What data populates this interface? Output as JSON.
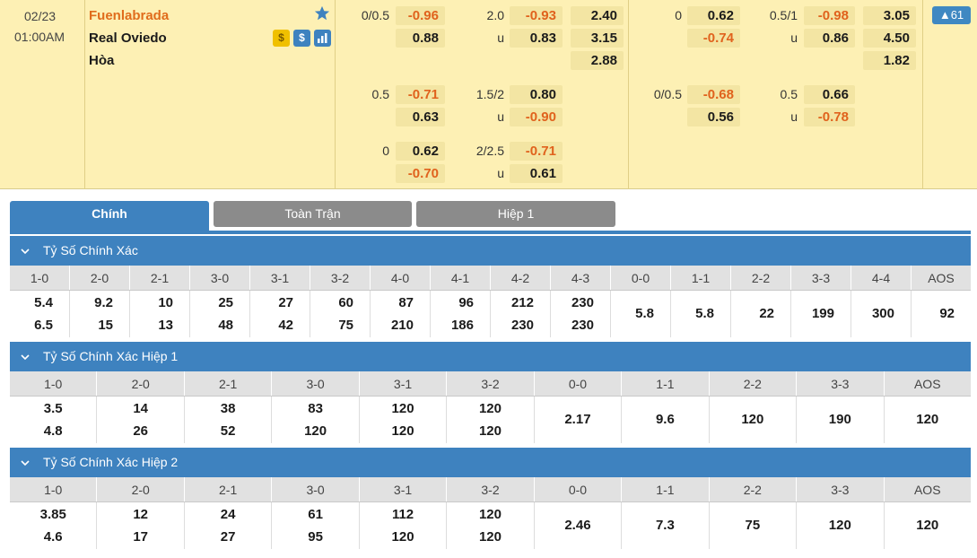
{
  "match": {
    "date": "02/23",
    "time": "01:00AM",
    "home": "Fuenlabrada",
    "away": "Real Oviedo",
    "draw": "Hòa",
    "icons": [
      "coin-icon",
      "dollar-icon",
      "stats-icon",
      "star-icon"
    ],
    "more_count": "61",
    "odds": {
      "ft_hcap_1": "0/0.5",
      "ft_hcap_1_home": "-0.96",
      "ft_hcap_1_away": "0.88",
      "ft_ou_1": "2.0",
      "ft_ou_1_over": "-0.93",
      "ft_ou_1_u": "u",
      "ft_ou_1_under": "0.83",
      "ft_1x2_home": "2.40",
      "ft_1x2_away": "3.15",
      "ft_1x2_draw": "2.88",
      "ft_hcap_2": "0.5",
      "ft_hcap_2_home": "-0.71",
      "ft_hcap_2_away": "0.63",
      "ft_ou_2": "1.5/2",
      "ft_ou_2_over": "0.80",
      "ft_ou_2_u": "u",
      "ft_ou_2_under": "-0.90",
      "ft_hcap_3": "0",
      "ft_hcap_3_home": "0.62",
      "ft_hcap_3_away": "-0.70",
      "ft_ou_3": "2/2.5",
      "ft_ou_3_over": "-0.71",
      "ft_ou_3_u": "u",
      "ft_ou_3_under": "0.61",
      "h1_hcap_1": "0",
      "h1_hcap_1_home": "0.62",
      "h1_hcap_1_away": "-0.74",
      "h1_ou_1": "0.5/1",
      "h1_ou_1_over": "-0.98",
      "h1_ou_1_u": "u",
      "h1_ou_1_under": "0.86",
      "h1_1x2_home": "3.05",
      "h1_1x2_away": "4.50",
      "h1_1x2_draw": "1.82",
      "h1_hcap_2": "0/0.5",
      "h1_hcap_2_home": "-0.68",
      "h1_hcap_2_away": "0.56",
      "h1_ou_2": "0.5",
      "h1_ou_2_over": "0.66",
      "h1_ou_2_u": "u",
      "h1_ou_2_under": "-0.78"
    }
  },
  "tabs": [
    "Chính",
    "Toàn Trận",
    "Hiệp 1"
  ],
  "sections": [
    {
      "title": "Tỷ Số Chính Xác",
      "headers": [
        "1-0",
        "2-0",
        "2-1",
        "3-0",
        "3-1",
        "3-2",
        "4-0",
        "4-1",
        "4-2",
        "4-3",
        "0-0",
        "1-1",
        "2-2",
        "3-3",
        "4-4",
        "AOS"
      ],
      "top": [
        "5.4",
        "9.2",
        "10",
        "25",
        "27",
        "60",
        "87",
        "96",
        "212",
        "230",
        "",
        "",
        "",
        "",
        "",
        ""
      ],
      "bottom": [
        "6.5",
        "15",
        "13",
        "48",
        "42",
        "75",
        "210",
        "186",
        "230",
        "230",
        "",
        "",
        "",
        "",
        "",
        ""
      ],
      "single": [
        "",
        "",
        "",
        "",
        "",
        "",
        "",
        "",
        "",
        "",
        "5.8",
        "5.8",
        "22",
        "199",
        "300",
        "92"
      ]
    },
    {
      "title": "Tỷ Số Chính Xác Hiệp 1",
      "headers": [
        "1-0",
        "2-0",
        "2-1",
        "3-0",
        "3-1",
        "3-2",
        "0-0",
        "1-1",
        "2-2",
        "3-3",
        "AOS"
      ],
      "top": [
        "3.5",
        "14",
        "38",
        "83",
        "120",
        "120",
        "",
        "",
        "",
        "",
        ""
      ],
      "bottom": [
        "4.8",
        "26",
        "52",
        "120",
        "120",
        "120",
        "",
        "",
        "",
        "",
        ""
      ],
      "single": [
        "",
        "",
        "",
        "",
        "",
        "",
        "2.17",
        "9.6",
        "120",
        "190",
        "120"
      ]
    },
    {
      "title": "Tỷ Số Chính Xác Hiệp 2",
      "headers": [
        "1-0",
        "2-0",
        "2-1",
        "3-0",
        "3-1",
        "3-2",
        "0-0",
        "1-1",
        "2-2",
        "3-3",
        "AOS"
      ],
      "top": [
        "3.85",
        "12",
        "24",
        "61",
        "112",
        "120",
        "",
        "",
        "",
        "",
        ""
      ],
      "bottom": [
        "4.6",
        "17",
        "27",
        "95",
        "120",
        "120",
        "",
        "",
        "",
        "",
        ""
      ],
      "single": [
        "",
        "",
        "",
        "",
        "",
        "",
        "2.46",
        "7.3",
        "75",
        "120",
        "120"
      ]
    }
  ]
}
